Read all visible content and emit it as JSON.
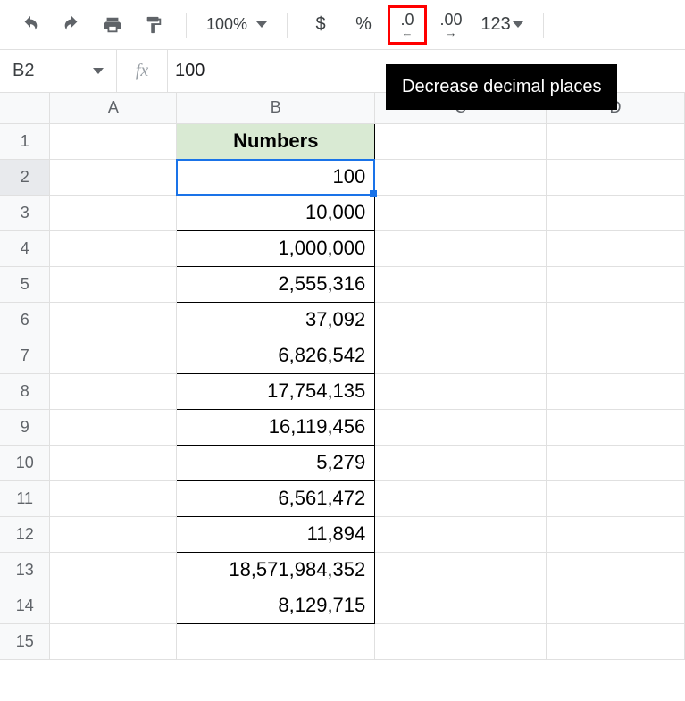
{
  "toolbar": {
    "zoom": "100%",
    "currency": "$",
    "percent": "%",
    "decrease_decimal": ".0",
    "decrease_decimal_arrow": "←",
    "increase_decimal": ".00",
    "increase_decimal_arrow": "→",
    "more_formats": "123"
  },
  "tooltip": "Decrease decimal places",
  "formula_bar": {
    "namebox": "B2",
    "fx_label": "fx",
    "value": "100"
  },
  "columns": [
    "A",
    "B",
    "C",
    "D"
  ],
  "rows": [
    "1",
    "2",
    "3",
    "4",
    "5",
    "6",
    "7",
    "8",
    "9",
    "10",
    "11",
    "12",
    "13",
    "14",
    "15"
  ],
  "header_label": "Numbers",
  "selected_row": 2,
  "data": {
    "2": "100",
    "3": "10,000",
    "4": "1,000,000",
    "5": "2,555,316",
    "6": "37,092",
    "7": "6,826,542",
    "8": "17,754,135",
    "9": "16,119,456",
    "10": "5,279",
    "11": "6,561,472",
    "12": "11,894",
    "13": "18,571,984,352",
    "14": "8,129,715"
  },
  "colors": {
    "highlight_border": "#ff0000",
    "selection": "#1a73e8",
    "header_fill": "#d9ead3",
    "header_text": "#274e13",
    "tooltip_bg": "#000000",
    "tooltip_fg": "#ffffff"
  }
}
